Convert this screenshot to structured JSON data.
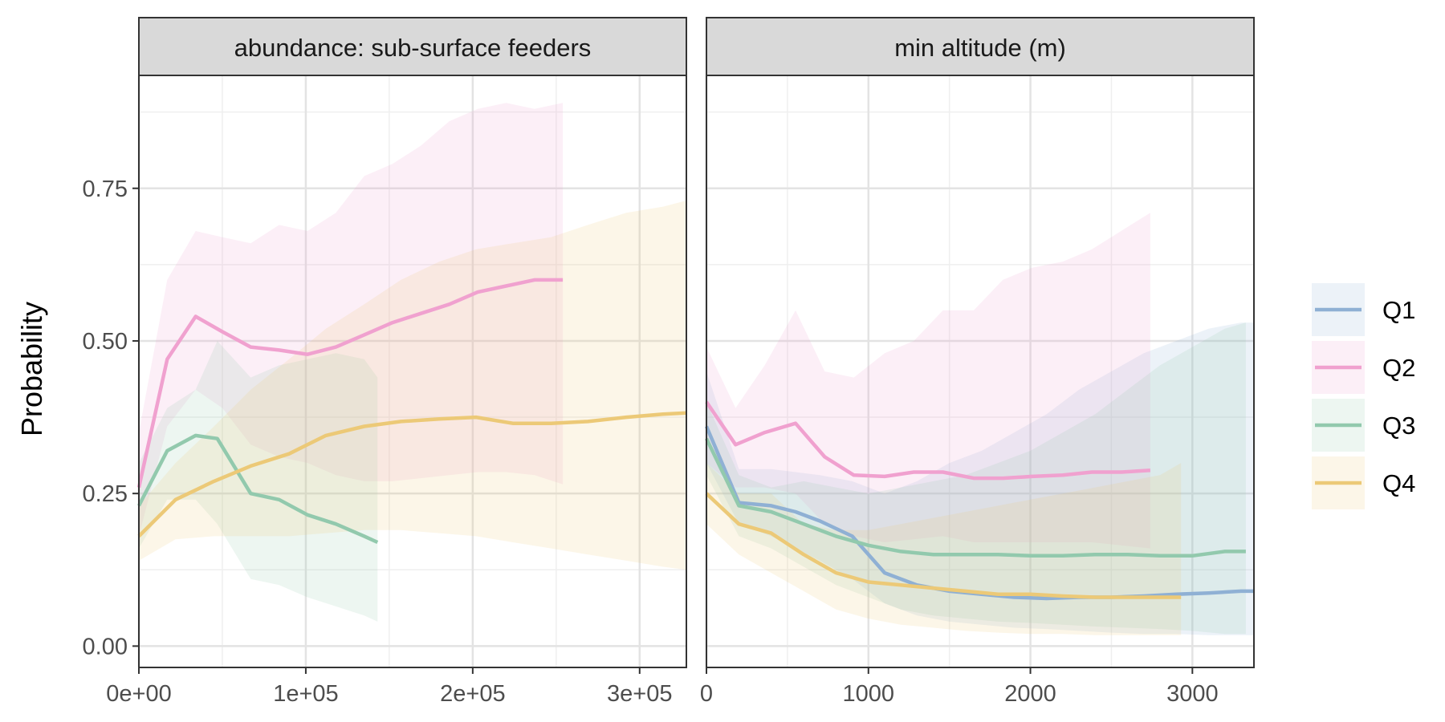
{
  "chart_data": {
    "type": "line",
    "ylabel": "Probability",
    "colors": {
      "Q1": "#8fb0d4",
      "Q2": "#f0a1cf",
      "Q3": "#92c9ad",
      "Q4": "#ecc977"
    },
    "legend": {
      "placement": "right",
      "entries": [
        "Q1",
        "Q2",
        "Q3",
        "Q4"
      ]
    },
    "grid": true,
    "panels": [
      {
        "title": "abundance: sub-surface feeders",
        "xlim": [
          0,
          328000
        ],
        "ylim": [
          -0.035,
          0.935
        ],
        "xticks": [
          0,
          100000,
          200000,
          300000
        ],
        "xtick_labels": [
          "0e+00",
          "1e+05",
          "2e+05",
          "3e+05"
        ],
        "yticks": [
          0,
          0.25,
          0.5,
          0.75
        ],
        "ytick_labels": [
          "0.00",
          "0.25",
          "0.50",
          "0.75"
        ],
        "series": [
          {
            "name": "Q2",
            "x": [
              0,
              17000,
              34000,
              50000,
              67000,
              84000,
              101000,
              118000,
              135000,
              152000,
              169000,
              186000,
              203000,
              220000,
              237000,
              254000
            ],
            "y": [
              0.26,
              0.47,
              0.54,
              0.515,
              0.49,
              0.485,
              0.478,
              0.49,
              0.51,
              0.53,
              0.545,
              0.56,
              0.58,
              0.59,
              0.6,
              0.6
            ],
            "lower": [
              0.18,
              0.36,
              0.42,
              0.39,
              0.33,
              0.31,
              0.3,
              0.28,
              0.27,
              0.27,
              0.275,
              0.28,
              0.285,
              0.285,
              0.28,
              0.265
            ],
            "upper": [
              0.35,
              0.6,
              0.68,
              0.67,
              0.66,
              0.69,
              0.68,
              0.71,
              0.77,
              0.79,
              0.82,
              0.86,
              0.88,
              0.89,
              0.88,
              0.89
            ]
          },
          {
            "name": "Q3",
            "x": [
              0,
              17000,
              34000,
              47000,
              67000,
              84000,
              101000,
              118000,
              135000,
              143000
            ],
            "y": [
              0.23,
              0.32,
              0.345,
              0.34,
              0.25,
              0.24,
              0.215,
              0.2,
              0.18,
              0.17
            ],
            "lower": [
              0.16,
              0.24,
              0.24,
              0.2,
              0.11,
              0.1,
              0.08,
              0.065,
              0.05,
              0.04
            ],
            "upper": [
              0.3,
              0.39,
              0.42,
              0.5,
              0.44,
              0.46,
              0.47,
              0.48,
              0.47,
              0.44
            ]
          },
          {
            "name": "Q4",
            "x": [
              0,
              22000,
              45000,
              67000,
              90000,
              112000,
              135000,
              157000,
              180000,
              202000,
              224000,
              247000,
              269000,
              292000,
              314000,
              328000
            ],
            "y": [
              0.18,
              0.24,
              0.27,
              0.295,
              0.315,
              0.345,
              0.36,
              0.368,
              0.372,
              0.375,
              0.365,
              0.365,
              0.368,
              0.375,
              0.38,
              0.382
            ],
            "lower": [
              0.14,
              0.175,
              0.18,
              0.18,
              0.18,
              0.185,
              0.19,
              0.19,
              0.185,
              0.18,
              0.17,
              0.16,
              0.15,
              0.14,
              0.13,
              0.125
            ],
            "upper": [
              0.23,
              0.3,
              0.36,
              0.42,
              0.47,
              0.52,
              0.56,
              0.6,
              0.63,
              0.65,
              0.66,
              0.67,
              0.69,
              0.71,
              0.72,
              0.73
            ]
          }
        ]
      },
      {
        "title": "min altitude (m)",
        "xlim": [
          0,
          3380
        ],
        "ylim": [
          -0.035,
          0.935
        ],
        "xticks": [
          0,
          1000,
          2000,
          3000
        ],
        "xtick_labels": [
          "0",
          "1000",
          "2000",
          "3000"
        ],
        "yticks": [
          0,
          0.25,
          0.5,
          0.75
        ],
        "ytick_labels": [
          "0.00",
          "0.25",
          "0.50",
          "0.75"
        ],
        "series": [
          {
            "name": "Q1",
            "x": [
              0,
              200,
              400,
              550,
              700,
              900,
              1100,
              1300,
              1500,
              1700,
              1900,
              2100,
              2300,
              2500,
              2700,
              2900,
              3100,
              3300,
              3380
            ],
            "y": [
              0.36,
              0.235,
              0.23,
              0.22,
              0.205,
              0.18,
              0.12,
              0.1,
              0.09,
              0.085,
              0.08,
              0.078,
              0.08,
              0.08,
              0.082,
              0.085,
              0.087,
              0.09,
              0.09
            ],
            "lower": [
              0.3,
              0.2,
              0.18,
              0.16,
              0.14,
              0.11,
              0.07,
              0.05,
              0.04,
              0.035,
              0.03,
              0.028,
              0.025,
              0.022,
              0.02,
              0.02,
              0.018,
              0.018,
              0.018
            ],
            "upper": [
              0.45,
              0.29,
              0.29,
              0.285,
              0.28,
              0.27,
              0.25,
              0.27,
              0.3,
              0.32,
              0.35,
              0.38,
              0.42,
              0.45,
              0.48,
              0.5,
              0.52,
              0.53,
              0.53
            ]
          },
          {
            "name": "Q2",
            "x": [
              0,
              180,
              360,
              550,
              730,
              910,
              1100,
              1280,
              1460,
              1650,
              1830,
              2010,
              2200,
              2380,
              2560,
              2740
            ],
            "y": [
              0.4,
              0.33,
              0.35,
              0.365,
              0.31,
              0.28,
              0.278,
              0.285,
              0.285,
              0.275,
              0.275,
              0.278,
              0.28,
              0.285,
              0.285,
              0.288
            ],
            "lower": [
              0.3,
              0.26,
              0.26,
              0.25,
              0.2,
              0.18,
              0.17,
              0.175,
              0.18,
              0.17,
              0.17,
              0.17,
              0.17,
              0.17,
              0.165,
              0.16
            ],
            "upper": [
              0.49,
              0.39,
              0.46,
              0.55,
              0.45,
              0.44,
              0.48,
              0.5,
              0.55,
              0.55,
              0.6,
              0.62,
              0.63,
              0.65,
              0.68,
              0.71
            ]
          },
          {
            "name": "Q3",
            "x": [
              0,
              200,
              400,
              600,
              800,
              1000,
              1200,
              1400,
              1600,
              1800,
              2000,
              2200,
              2400,
              2600,
              2800,
              3000,
              3200,
              3330
            ],
            "y": [
              0.34,
              0.23,
              0.22,
              0.2,
              0.18,
              0.165,
              0.155,
              0.15,
              0.15,
              0.15,
              0.148,
              0.148,
              0.15,
              0.15,
              0.148,
              0.148,
              0.155,
              0.155
            ],
            "lower": [
              0.28,
              0.18,
              0.16,
              0.13,
              0.1,
              0.08,
              0.06,
              0.05,
              0.045,
              0.04,
              0.038,
              0.035,
              0.032,
              0.03,
              0.028,
              0.025,
              0.02,
              0.02
            ],
            "upper": [
              0.4,
              0.28,
              0.26,
              0.27,
              0.26,
              0.25,
              0.26,
              0.27,
              0.28,
              0.3,
              0.32,
              0.35,
              0.38,
              0.42,
              0.46,
              0.49,
              0.52,
              0.53
            ]
          },
          {
            "name": "Q4",
            "x": [
              0,
              200,
              400,
              600,
              800,
              1000,
              1200,
              1400,
              1600,
              1800,
              2000,
              2200,
              2400,
              2600,
              2800,
              2930
            ],
            "y": [
              0.25,
              0.2,
              0.185,
              0.15,
              0.12,
              0.105,
              0.1,
              0.095,
              0.09,
              0.085,
              0.085,
              0.082,
              0.08,
              0.08,
              0.08,
              0.08
            ],
            "lower": [
              0.2,
              0.15,
              0.12,
              0.09,
              0.06,
              0.045,
              0.035,
              0.03,
              0.025,
              0.022,
              0.02,
              0.02,
              0.018,
              0.018,
              0.018,
              0.018
            ],
            "upper": [
              0.3,
              0.25,
              0.25,
              0.2,
              0.19,
              0.19,
              0.2,
              0.21,
              0.22,
              0.23,
              0.24,
              0.25,
              0.26,
              0.27,
              0.28,
              0.3
            ]
          }
        ]
      }
    ]
  }
}
